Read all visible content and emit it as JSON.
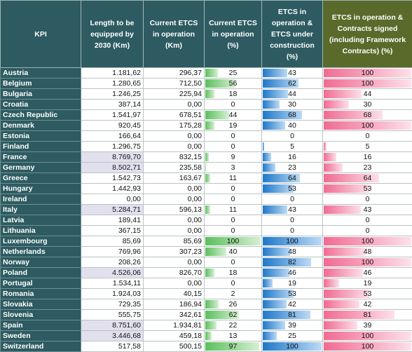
{
  "headers": {
    "kpi": "KPI",
    "length": "Length to be equipped by 2030 (Km)",
    "etcs_km": "Current ETCS in operation (Km)",
    "etcs_pct": "Current ETCS in operation (%)",
    "etcs_construction": "ETCS in operation & ETCS under construction (%)",
    "etcs_contracts": "ETCS in operation & Contracts signed (including Framework Contracts) (%)"
  },
  "colors": {
    "header_bg": "#2d5b61",
    "header_last_bg": "#5a6a2a",
    "bar_green": "#5bbf5b",
    "bar_blue": "#1f78c8",
    "bar_pink": "#f06b92",
    "highlight_cell": "#e3e0ee"
  },
  "rows": [
    {
      "country": "Austria",
      "length": "1.181,62",
      "etcs_km": "296,37",
      "pct": 25,
      "constr": 43,
      "contracts": 100,
      "hl": false
    },
    {
      "country": "Belgium",
      "length": "1.280,65",
      "etcs_km": "712,50",
      "pct": 56,
      "constr": 62,
      "contracts": 100,
      "hl": false
    },
    {
      "country": "Bulgaria",
      "length": "1.246,25",
      "etcs_km": "225,94",
      "pct": 18,
      "constr": 44,
      "contracts": 44,
      "hl": false
    },
    {
      "country": "Croatia",
      "length": "387,14",
      "etcs_km": "0,00",
      "pct": 0,
      "constr": 30,
      "contracts": 30,
      "hl": false
    },
    {
      "country": "Czech Republic",
      "length": "1.541,97",
      "etcs_km": "678,51",
      "pct": 44,
      "constr": 68,
      "contracts": 68,
      "hl": false
    },
    {
      "country": "Denmark",
      "length": "920,45",
      "etcs_km": "175,28",
      "pct": 19,
      "constr": 40,
      "contracts": 100,
      "hl": false
    },
    {
      "country": "Estonia",
      "length": "166,64",
      "etcs_km": "0,00",
      "pct": 0,
      "constr": 0,
      "contracts": 0,
      "hl": false
    },
    {
      "country": "Finland",
      "length": "1.296,75",
      "etcs_km": "0,00",
      "pct": 0,
      "constr": 5,
      "contracts": 5,
      "hl": false
    },
    {
      "country": "France",
      "length": "8.769,70",
      "etcs_km": "832,15",
      "pct": 9,
      "constr": 16,
      "contracts": 16,
      "hl": true
    },
    {
      "country": "Germany",
      "length": "8.502,71",
      "etcs_km": "235,58",
      "pct": 3,
      "constr": 23,
      "contracts": 23,
      "hl": true
    },
    {
      "country": "Greece",
      "length": "1.542,73",
      "etcs_km": "163,67",
      "pct": 11,
      "constr": 64,
      "contracts": 64,
      "hl": false
    },
    {
      "country": "Hungary",
      "length": "1.442,93",
      "etcs_km": "0,00",
      "pct": 0,
      "constr": 53,
      "contracts": 53,
      "hl": false
    },
    {
      "country": "Ireland",
      "length": "0,00",
      "etcs_km": "0,00",
      "pct": 0,
      "constr": 0,
      "contracts": 0,
      "hl": false
    },
    {
      "country": "Italy",
      "length": "5.284,71",
      "etcs_km": "596,13",
      "pct": 11,
      "constr": 43,
      "contracts": 43,
      "hl": true
    },
    {
      "country": "Latvia",
      "length": "189,41",
      "etcs_km": "0,00",
      "pct": 0,
      "constr": 0,
      "contracts": 0,
      "hl": false
    },
    {
      "country": "Lithuania",
      "length": "367,15",
      "etcs_km": "0,00",
      "pct": 0,
      "constr": 0,
      "contracts": 0,
      "hl": false
    },
    {
      "country": "Luxembourg",
      "length": "85,69",
      "etcs_km": "85,69",
      "pct": 100,
      "constr": 100,
      "contracts": 100,
      "hl": false
    },
    {
      "country": "Netherlands",
      "length": "769,96",
      "etcs_km": "307,23",
      "pct": 40,
      "constr": 48,
      "contracts": 48,
      "hl": false
    },
    {
      "country": "Norway",
      "length": "208,26",
      "etcs_km": "0,00",
      "pct": 0,
      "constr": 82,
      "contracts": 100,
      "hl": false
    },
    {
      "country": "Poland",
      "length": "4.526,06",
      "etcs_km": "826,70",
      "pct": 18,
      "constr": 46,
      "contracts": 46,
      "hl": true
    },
    {
      "country": "Portugal",
      "length": "1.534,11",
      "etcs_km": "0,00",
      "pct": 0,
      "constr": 19,
      "contracts": 19,
      "hl": false
    },
    {
      "country": "Romania",
      "length": "1.924,03",
      "etcs_km": "40,15",
      "pct": 2,
      "constr": 53,
      "contracts": 53,
      "hl": false
    },
    {
      "country": "Slovakia",
      "length": "729,35",
      "etcs_km": "186,94",
      "pct": 26,
      "constr": 42,
      "contracts": 42,
      "hl": false
    },
    {
      "country": "Slovenia",
      "length": "555,75",
      "etcs_km": "342,61",
      "pct": 62,
      "constr": 81,
      "contracts": 81,
      "hl": false
    },
    {
      "country": "Spain",
      "length": "8.751,60",
      "etcs_km": "1.934,81",
      "pct": 22,
      "constr": 39,
      "contracts": 39,
      "hl": true
    },
    {
      "country": "Sweden",
      "length": "3.446,68",
      "etcs_km": "459,18",
      "pct": 13,
      "constr": 25,
      "contracts": 100,
      "hl": true
    },
    {
      "country": "Switzerland",
      "length": "517,58",
      "etcs_km": "500,15",
      "pct": 97,
      "constr": 100,
      "contracts": 100,
      "hl": false
    }
  ]
}
